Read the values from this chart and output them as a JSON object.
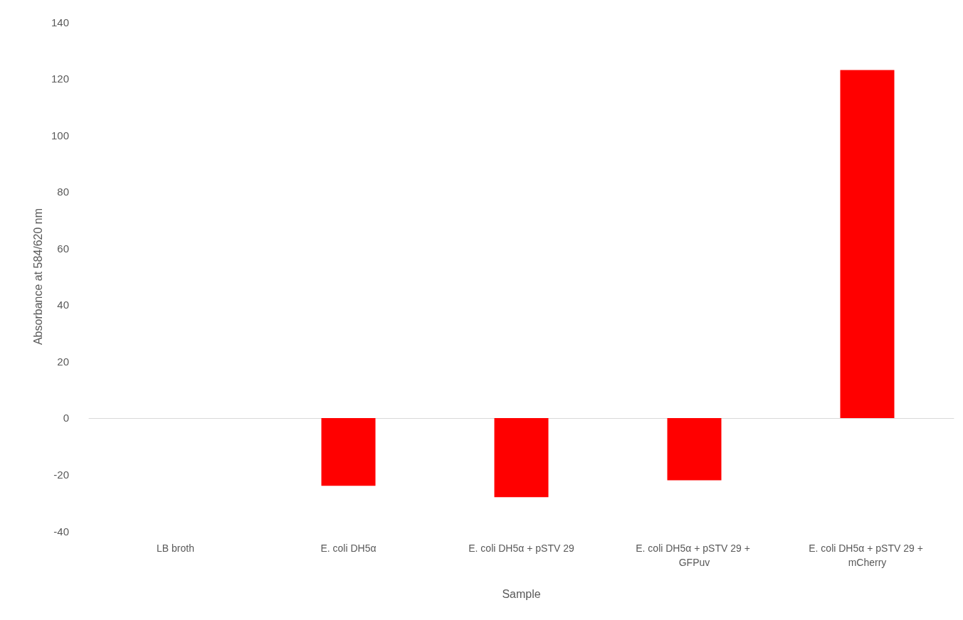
{
  "chart_data": {
    "type": "bar",
    "xlabel": "Sample",
    "ylabel": "Absorbance at 584/620 nm",
    "categories": [
      "LB broth",
      "E. coli DH5α",
      "E. coli DH5α + pSTV 29",
      "E. coli DH5α + pSTV 29 + GFPuv",
      "E. coli DH5α + pSTV 29 + mCherry"
    ],
    "values": [
      0,
      -24,
      -28,
      -22,
      123
    ],
    "color": "#ff0000",
    "ylim": [
      -40,
      140
    ],
    "yticks": [
      -40,
      -20,
      0,
      20,
      40,
      60,
      80,
      100,
      120,
      140
    ]
  }
}
